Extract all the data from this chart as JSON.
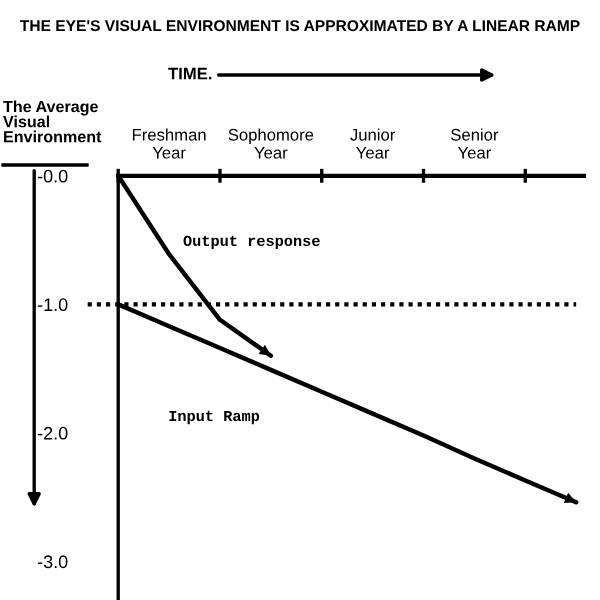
{
  "chart_data": {
    "type": "line",
    "title": "THE EYE'S VISUAL ENVIRONMENT IS APPROXIMATED BY A LINEAR RAMP",
    "xlabel": "TIME.",
    "ylabel": "The Average\nVisual\nEnvironment",
    "categories": [
      null,
      "Freshman\nYear",
      null,
      "Sophomore\nYear",
      null,
      "Junior\nYear",
      null,
      "Senior\nYear",
      null,
      null
    ],
    "ylim": [
      -3.3,
      0
    ],
    "yticks": [
      {
        "value": 0,
        "label": "-0.0"
      },
      {
        "value": -1,
        "label": "-1.0"
      },
      {
        "value": -2,
        "label": "-2.0"
      },
      {
        "value": -3,
        "label": "-3.0"
      }
    ],
    "series": [
      {
        "name": "Output response",
        "color": "#000000",
        "values": [
          0,
          -0.61,
          -1.12,
          -1.4,
          null,
          null,
          null,
          null,
          null,
          null
        ]
      },
      {
        "name": "Input Ramp",
        "color": "#000000",
        "values": [
          -1.0,
          -1.17,
          -1.34,
          -1.51,
          -1.68,
          -1.85,
          -2.02,
          -2.2,
          -2.37,
          -2.54
        ]
      }
    ],
    "ref_lines": [
      {
        "axis": "y",
        "value": -1.0,
        "label": null,
        "color": "#000000",
        "line_style": "dotted"
      }
    ],
    "grid": false,
    "legend": false,
    "marker": "none",
    "line_style": "solid"
  }
}
